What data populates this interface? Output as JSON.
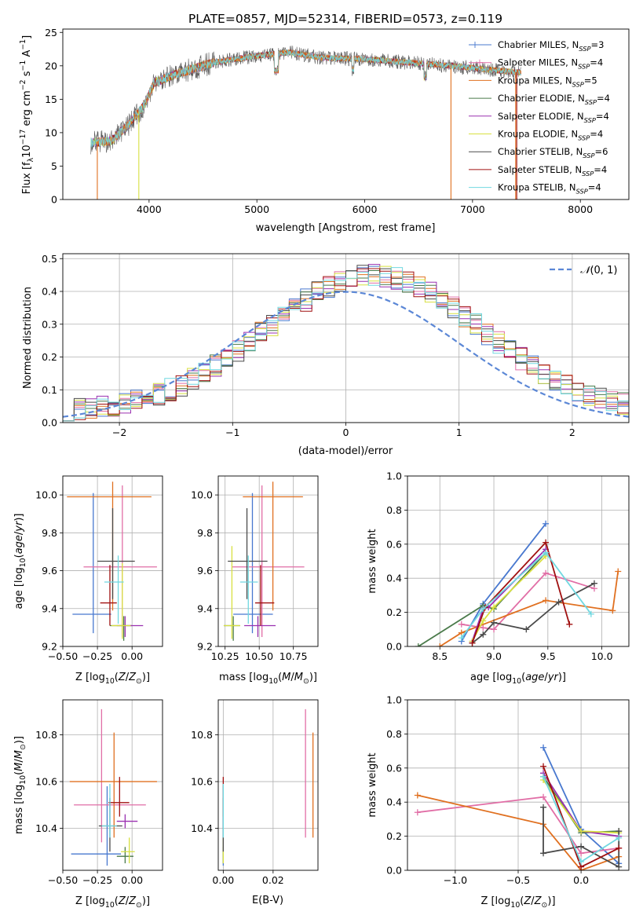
{
  "figure": {
    "title": "PLATE=0857, MJD=52314, FIBERID=0573, z=0.119"
  },
  "series_names": [
    "Chabrier MILES, N_SSP=3",
    "Salpeter MILES, N_SSP=4",
    "Kroupa MILES, N_SSP=5",
    "Chabrier ELODIE, N_SSP=4",
    "Salpeter ELODIE, N_SSP=4",
    "Kroupa ELODIE, N_SSP=4",
    "Chabrier STELIB, N_SSP=6",
    "Salpeter STELIB, N_SSP=4",
    "Kroupa STELIB, N_SSP=4"
  ],
  "series_colors": [
    "#4878cf",
    "#e16ea6",
    "#e07020",
    "#4a7a4a",
    "#9a30b0",
    "#d8e040",
    "#4a4a4a",
    "#a01010",
    "#70d8e0"
  ],
  "chart_data": [
    {
      "id": "spectrum",
      "type": "line",
      "xlabel": "wavelength [Angstrom, rest frame]",
      "ylabel": "Flux [f_λ 10^-17 erg cm^-2 s^-1 A^-1]",
      "xlim": [
        3200,
        8450
      ],
      "ylim": [
        0,
        25.5
      ],
      "xticks": [
        4000,
        5000,
        6000,
        7000,
        8000
      ],
      "yticks": [
        0,
        5,
        10,
        15,
        20,
        25
      ],
      "x_range_data": [
        3450,
        7450
      ],
      "continuum": [
        [
          3450,
          8.5
        ],
        [
          3650,
          8.8
        ],
        [
          3800,
          11
        ],
        [
          3950,
          14
        ],
        [
          4050,
          17.5
        ],
        [
          4300,
          19
        ],
        [
          4600,
          20.5
        ],
        [
          5000,
          21.5
        ],
        [
          5300,
          22
        ],
        [
          5600,
          21.2
        ],
        [
          6000,
          21
        ],
        [
          6400,
          20.5
        ],
        [
          6800,
          20
        ],
        [
          7100,
          19.5
        ],
        [
          7450,
          19
        ]
      ],
      "legend": "upper right",
      "grid": false
    },
    {
      "id": "residuals",
      "type": "histogram",
      "xlabel": "(data-model)/error",
      "ylabel": "Normed distribution",
      "xlim": [
        -2.5,
        2.5
      ],
      "ylim": [
        0,
        0.515
      ],
      "xticks": [
        -2,
        -1,
        0,
        1,
        2
      ],
      "yticks": [
        0.0,
        0.1,
        0.2,
        0.3,
        0.4,
        0.5
      ],
      "bin_edges_start": -2.5,
      "bin_width": 0.1,
      "reference_curve": "N(0,1)",
      "legend": "upper right",
      "grid": true
    },
    {
      "id": "age-vs-Z",
      "type": "errorbar",
      "xlabel": "Z [log10(Z/Z☉)]",
      "ylabel": "age [log10(age/yr)]",
      "xlim": [
        -0.5,
        0.22
      ],
      "ylim": [
        9.2,
        10.1
      ],
      "xticks": [
        -0.5,
        -0.25,
        0.0
      ],
      "yticks": [
        9.2,
        9.4,
        9.6,
        9.8,
        10.0
      ],
      "points": [
        {
          "x": -0.28,
          "y": 9.37,
          "xerr": [
            0.15,
            0.13
          ],
          "yerr": [
            0.1,
            0.64
          ]
        },
        {
          "x": -0.07,
          "y": 9.62,
          "xerr": [
            0.28,
            0.25
          ],
          "yerr": [
            0.37,
            0.43
          ]
        },
        {
          "x": -0.14,
          "y": 9.99,
          "xerr": [
            0.33,
            0.28
          ],
          "yerr": [
            0.6,
            0.08
          ]
        },
        {
          "x": -0.06,
          "y": 9.31,
          "xerr": [
            0.1,
            0.06
          ],
          "yerr": [
            0.08,
            0.05
          ]
        },
        {
          "x": -0.05,
          "y": 9.31,
          "xerr": [
            0.06,
            0.13
          ],
          "yerr": [
            0.06,
            0.05
          ]
        },
        {
          "x": -0.07,
          "y": 9.31,
          "xerr": [
            0.08,
            0.06
          ],
          "yerr": [
            0.07,
            0.33
          ]
        },
        {
          "x": -0.14,
          "y": 9.65,
          "xerr": [
            0.11,
            0.16
          ],
          "yerr": [
            0.2,
            0.28
          ]
        },
        {
          "x": -0.16,
          "y": 9.43,
          "xerr": [
            0.07,
            0.05
          ],
          "yerr": [
            0.12,
            0.2
          ]
        },
        {
          "x": -0.1,
          "y": 9.54,
          "xerr": [
            0.1,
            0.04
          ],
          "yerr": [
            0.22,
            0.14
          ]
        }
      ],
      "grid": true
    },
    {
      "id": "age-vs-mass",
      "type": "errorbar",
      "xlabel": "mass [log10(M/M☉)]",
      "ylabel": "",
      "xlim": [
        10.2,
        10.93
      ],
      "ylim": [
        9.2,
        10.1
      ],
      "xticks": [
        10.25,
        10.5,
        10.75
      ],
      "yticks": [
        9.2,
        9.4,
        9.6,
        9.8,
        10.0
      ],
      "points": [
        {
          "x": 10.45,
          "y": 9.37,
          "xerr": [
            0.14,
            0.15
          ],
          "yerr": [
            0.1,
            0.64
          ]
        },
        {
          "x": 10.52,
          "y": 9.62,
          "xerr": [
            0.22,
            0.31
          ],
          "yerr": [
            0.37,
            0.43
          ]
        },
        {
          "x": 10.6,
          "y": 9.99,
          "xerr": [
            0.22,
            0.22
          ],
          "yerr": [
            0.6,
            0.08
          ]
        },
        {
          "x": 10.31,
          "y": 9.31,
          "xerr": [
            0.07,
            0.05
          ],
          "yerr": [
            0.08,
            0.05
          ]
        },
        {
          "x": 10.49,
          "y": 9.31,
          "xerr": [
            0.1,
            0.13
          ],
          "yerr": [
            0.06,
            0.05
          ]
        },
        {
          "x": 10.3,
          "y": 9.31,
          "xerr": [
            0.06,
            0.06
          ],
          "yerr": [
            0.07,
            0.42
          ]
        },
        {
          "x": 10.41,
          "y": 9.65,
          "xerr": [
            0.14,
            0.15
          ],
          "yerr": [
            0.2,
            0.28
          ]
        },
        {
          "x": 10.51,
          "y": 9.43,
          "xerr": [
            0.04,
            0.1
          ],
          "yerr": [
            0.12,
            0.2
          ]
        },
        {
          "x": 10.42,
          "y": 9.54,
          "xerr": [
            0.06,
            0.07
          ],
          "yerr": [
            0.22,
            0.14
          ]
        }
      ],
      "grid": true
    },
    {
      "id": "weight-vs-age",
      "type": "line",
      "xlabel": "age [log10(age/yr)]",
      "ylabel": "mass weight",
      "xlim": [
        8.2,
        10.25
      ],
      "ylim": [
        0,
        1.0
      ],
      "xticks": [
        8.5,
        9.0,
        9.5,
        10.0
      ],
      "yticks": [
        0.0,
        0.2,
        0.4,
        0.6,
        0.8,
        1.0
      ],
      "series": [
        {
          "x": [
            8.7,
            8.9,
            9.48
          ],
          "y": [
            0.03,
            0.25,
            0.72
          ]
        },
        {
          "x": [
            8.7,
            8.9,
            9.0,
            9.48,
            9.93
          ],
          "y": [
            0.13,
            0.11,
            0.1,
            0.43,
            0.34
          ]
        },
        {
          "x": [
            8.5,
            8.7,
            9.48,
            10.1,
            10.15
          ],
          "y": [
            0.0,
            0.08,
            0.27,
            0.21,
            0.44
          ]
        },
        {
          "x": [
            8.3,
            8.9,
            9.0,
            9.48
          ],
          "y": [
            0.0,
            0.24,
            0.22,
            0.55
          ]
        },
        {
          "x": [
            8.8,
            8.9,
            8.95,
            9.48
          ],
          "y": [
            0.03,
            0.22,
            0.23,
            0.57
          ]
        },
        {
          "x": [
            8.8,
            8.9,
            9.0,
            9.48
          ],
          "y": [
            0.03,
            0.15,
            0.23,
            0.53
          ]
        },
        {
          "x": [
            8.8,
            8.9,
            9.0,
            9.3,
            9.6,
            9.93
          ],
          "y": [
            0.02,
            0.07,
            0.14,
            0.1,
            0.26,
            0.37
          ]
        },
        {
          "x": [
            8.8,
            8.92,
            9.48,
            9.7
          ],
          "y": [
            0.02,
            0.23,
            0.61,
            0.13
          ]
        },
        {
          "x": [
            8.7,
            8.9,
            9.48,
            9.9
          ],
          "y": [
            0.05,
            0.22,
            0.55,
            0.19
          ]
        }
      ],
      "grid": true
    },
    {
      "id": "mass-vs-Z",
      "type": "errorbar",
      "xlabel": "Z [log10(Z/Z☉)]",
      "ylabel": "mass [log10(M/M☉)]",
      "xlim": [
        -0.5,
        0.22
      ],
      "ylim": [
        10.22,
        10.95
      ],
      "xticks": [
        -0.5,
        -0.25,
        0.0
      ],
      "yticks": [
        10.4,
        10.6,
        10.8
      ],
      "points": [
        {
          "x": -0.18,
          "y": 10.29,
          "xerr": [
            0.26,
            0.1
          ],
          "yerr": [
            0.05,
            0.29
          ]
        },
        {
          "x": -0.22,
          "y": 10.5,
          "xerr": [
            0.2,
            0.32
          ],
          "yerr": [
            0.16,
            0.41
          ]
        },
        {
          "x": -0.13,
          "y": 10.6,
          "xerr": [
            0.32,
            0.31
          ],
          "yerr": [
            0.24,
            0.21
          ]
        },
        {
          "x": -0.05,
          "y": 10.28,
          "xerr": [
            0.06,
            0.06
          ],
          "yerr": [
            0.03,
            0.04
          ]
        },
        {
          "x": -0.05,
          "y": 10.43,
          "xerr": [
            0.06,
            0.09
          ],
          "yerr": [
            0.03,
            0.03
          ]
        },
        {
          "x": -0.02,
          "y": 10.3,
          "xerr": [
            0.06,
            0.04
          ],
          "yerr": [
            0.05,
            0.06
          ]
        },
        {
          "x": -0.16,
          "y": 10.41,
          "xerr": [
            0.08,
            0.09
          ],
          "yerr": [
            0.11,
            0.12
          ]
        },
        {
          "x": -0.09,
          "y": 10.51,
          "xerr": [
            0.08,
            0.07
          ],
          "yerr": [
            0.06,
            0.11
          ]
        },
        {
          "x": -0.16,
          "y": 10.41,
          "xerr": [
            0.06,
            0.05
          ],
          "yerr": [
            0.05,
            0.18
          ]
        }
      ],
      "grid": true
    },
    {
      "id": "mass-vs-EBV",
      "type": "errorbar",
      "xlabel": "E(B-V)",
      "ylabel": "",
      "xlim": [
        -0.002,
        0.038
      ],
      "ylim": [
        10.22,
        10.95
      ],
      "xticks": [
        0.0,
        0.02
      ],
      "yticks": [
        10.4,
        10.6,
        10.8
      ],
      "points": [
        {
          "x": 0.0,
          "y": 10.29,
          "xerr": [
            0,
            0
          ],
          "yerr": [
            0.05,
            0.29
          ]
        },
        {
          "x": 0.033,
          "y": 10.6,
          "xerr": [
            0,
            0
          ],
          "yerr": [
            0.24,
            0.31
          ]
        },
        {
          "x": 0.036,
          "y": 10.6,
          "xerr": [
            0,
            0
          ],
          "yerr": [
            0.24,
            0.21
          ]
        },
        {
          "x": 0.0,
          "y": 10.28,
          "xerr": [
            0,
            0
          ],
          "yerr": [
            0.03,
            0.04
          ]
        },
        {
          "x": 0.0,
          "y": 10.43,
          "xerr": [
            0,
            0
          ],
          "yerr": [
            0.03,
            0.03
          ]
        },
        {
          "x": 0.0,
          "y": 10.3,
          "xerr": [
            0,
            0
          ],
          "yerr": [
            0.05,
            0.06
          ]
        },
        {
          "x": 0.0,
          "y": 10.41,
          "xerr": [
            0,
            0
          ],
          "yerr": [
            0.11,
            0.12
          ]
        },
        {
          "x": 0.0,
          "y": 10.51,
          "xerr": [
            0,
            0
          ],
          "yerr": [
            0.06,
            0.11
          ]
        },
        {
          "x": 0.0,
          "y": 10.41,
          "xerr": [
            0,
            0
          ],
          "yerr": [
            0.05,
            0.18
          ]
        }
      ],
      "grid": true
    },
    {
      "id": "weight-vs-Z",
      "type": "line",
      "xlabel": "Z [log10(Z/Z☉)]",
      "ylabel": "mass weight",
      "xlim": [
        -1.38,
        0.38
      ],
      "ylim": [
        0,
        1.0
      ],
      "xticks": [
        -1.0,
        -0.5,
        0.0
      ],
      "yticks": [
        0.0,
        0.2,
        0.4,
        0.6,
        0.8,
        1.0
      ],
      "series": [
        {
          "x": [
            -0.3,
            0.0,
            0.3
          ],
          "y": [
            0.72,
            0.24,
            0.04
          ]
        },
        {
          "x": [
            -1.3,
            -0.3,
            0.0,
            0.3
          ],
          "y": [
            0.34,
            0.43,
            0.1,
            0.13
          ]
        },
        {
          "x": [
            -1.3,
            -0.3,
            0.0,
            0.3
          ],
          "y": [
            0.44,
            0.27,
            0.0,
            0.08
          ]
        },
        {
          "x": [
            -0.3,
            0.0,
            0.3
          ],
          "y": [
            0.55,
            0.22,
            0.23
          ]
        },
        {
          "x": [
            -0.3,
            0.0,
            0.3
          ],
          "y": [
            0.57,
            0.23,
            0.2
          ]
        },
        {
          "x": [
            -0.3,
            0.0,
            0.3
          ],
          "y": [
            0.53,
            0.23,
            0.22
          ]
        },
        {
          "x": [
            -0.3,
            -0.3,
            0.0,
            0.3,
            0.3
          ],
          "y": [
            0.37,
            0.1,
            0.14,
            0.02,
            0.23
          ]
        },
        {
          "x": [
            -0.3,
            0.0,
            0.3
          ],
          "y": [
            0.61,
            0.02,
            0.13
          ]
        },
        {
          "x": [
            -0.3,
            0.0,
            0.3
          ],
          "y": [
            0.55,
            0.05,
            0.19
          ]
        }
      ],
      "grid": true
    }
  ]
}
